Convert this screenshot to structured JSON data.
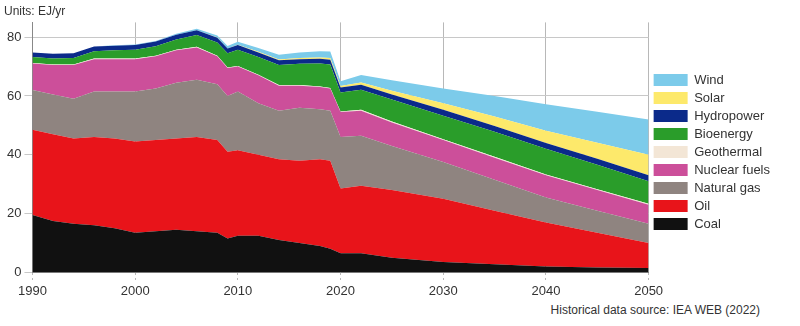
{
  "chart_data": {
    "type": "area",
    "ylabel": "Units: EJ/yr",
    "annotations": [
      "Historical data source: IEA WEB (2022)"
    ],
    "x": [
      1990,
      1992,
      1994,
      1996,
      1998,
      2000,
      2002,
      2004,
      2006,
      2008,
      2009,
      2010,
      2012,
      2014,
      2016,
      2018,
      2019,
      2020,
      2022,
      2025,
      2030,
      2035,
      2040,
      2045,
      2050
    ],
    "xlim": [
      1990,
      2050
    ],
    "xticks": [
      1990,
      2000,
      2010,
      2020,
      2030,
      2040,
      2050
    ],
    "ylim": [
      0,
      85
    ],
    "yticks": [
      0,
      20,
      40,
      60,
      80
    ],
    "grid": true,
    "stacked": true,
    "legend": "right",
    "series": [
      {
        "name": "Coal",
        "color": "#111111",
        "values": [
          19.5,
          17.5,
          16.5,
          16,
          15,
          13.5,
          14,
          14.5,
          14,
          13.5,
          11.5,
          12.5,
          12.5,
          11,
          10,
          9,
          8,
          6.5,
          6.5,
          5,
          3.5,
          2.8,
          2,
          1.7,
          1.5
        ]
      },
      {
        "name": "Oil",
        "color": "#e8141a",
        "values": [
          29,
          29.5,
          29,
          30,
          30.5,
          31,
          31,
          31,
          32,
          31.5,
          29.5,
          29,
          27.5,
          27.5,
          28,
          29.5,
          30,
          22,
          23,
          23,
          21.5,
          18.2,
          15,
          11.8,
          8.5
        ]
      },
      {
        "name": "Natural gas",
        "color": "#8f8480",
        "values": [
          13.5,
          13.5,
          13.5,
          15.5,
          16,
          17,
          17.5,
          19,
          19.5,
          19,
          19,
          20,
          17.5,
          16.5,
          18,
          17,
          17,
          17.5,
          17,
          15,
          12.5,
          10.5,
          8.5,
          7.5,
          6.5
        ]
      },
      {
        "name": "Nuclear fuels",
        "color": "#cc4f9a",
        "values": [
          9,
          10,
          11.5,
          11,
          11,
          11,
          11,
          11,
          11,
          9.5,
          9.5,
          8.5,
          9.5,
          8.5,
          7.5,
          7.5,
          7.5,
          8.5,
          8.5,
          8,
          7.5,
          7.5,
          7.5,
          7,
          6.5
        ]
      },
      {
        "name": "Geothermal",
        "color": "#f3e6d6",
        "values": [
          0.2,
          0.2,
          0.2,
          0.2,
          0.2,
          0.2,
          0.2,
          0.2,
          0.2,
          0.2,
          0.2,
          0.2,
          0.2,
          0.2,
          0.2,
          0.2,
          0.2,
          0.2,
          0.3,
          0.3,
          0.3,
          0.3,
          0.3,
          0.3,
          0.3
        ]
      },
      {
        "name": "Bioenergy",
        "color": "#2a9d2a",
        "values": [
          2,
          2,
          2.2,
          2.5,
          2.8,
          3,
          3.2,
          3.5,
          4,
          4.5,
          4.8,
          5.5,
          6,
          6.8,
          7.2,
          7.8,
          8,
          6.5,
          6.8,
          7.5,
          8,
          8.5,
          8.7,
          8.3,
          7.7
        ]
      },
      {
        "name": "Hydropower",
        "color": "#0b2a8a",
        "values": [
          1.6,
          1.6,
          1.6,
          1.6,
          1.6,
          1.6,
          1.6,
          1.6,
          1.6,
          1.6,
          1.6,
          1.6,
          1.6,
          1.6,
          1.6,
          1.6,
          1.6,
          1.7,
          1.7,
          1.7,
          2,
          2,
          2,
          2,
          2
        ]
      },
      {
        "name": "Solar",
        "color": "#fde96b",
        "values": [
          0,
          0,
          0,
          0,
          0,
          0,
          0,
          0,
          0,
          0.05,
          0.05,
          0.1,
          0.2,
          0.3,
          0.4,
          0.5,
          0.6,
          0.5,
          0.8,
          1.3,
          2.2,
          3.2,
          4.2,
          5.5,
          7
        ]
      },
      {
        "name": "Wind",
        "color": "#7ccbea",
        "values": [
          0,
          0,
          0,
          0,
          0.1,
          0.2,
          0.2,
          0.3,
          0.5,
          0.7,
          0.8,
          1,
          1.3,
          1.6,
          1.9,
          2.1,
          2.2,
          1.6,
          2.5,
          3.5,
          5,
          7,
          9,
          10.5,
          12
        ]
      }
    ]
  }
}
